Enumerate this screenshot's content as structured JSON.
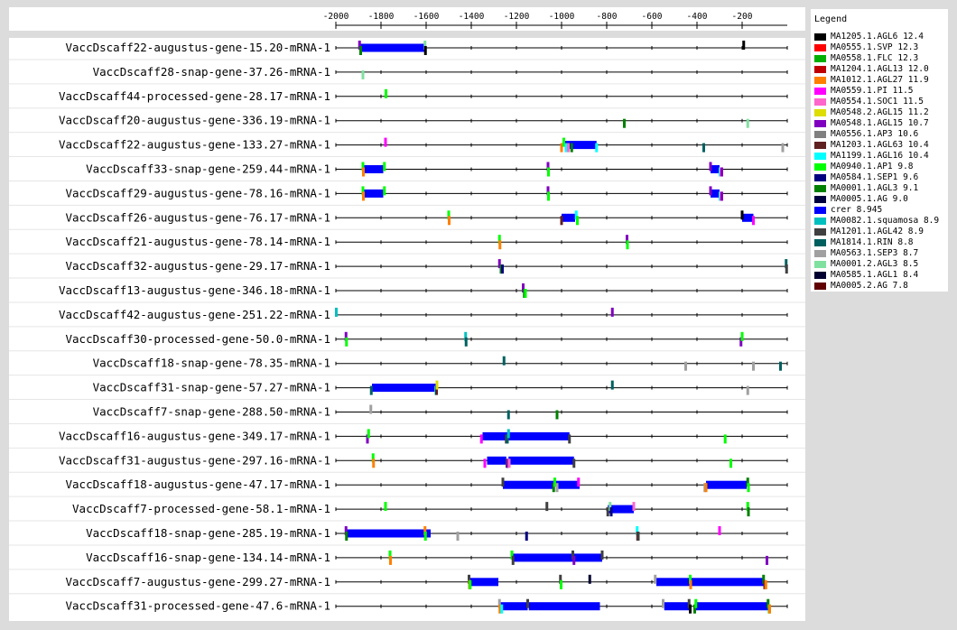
{
  "legend": {
    "title": "Legend",
    "items": [
      {
        "label": "MA1205.1.AGL6 12.4",
        "color": "#000000"
      },
      {
        "label": "MA0555.1.SVP 12.3",
        "color": "#ff0000"
      },
      {
        "label": "MA0558.1.FLC 12.3",
        "color": "#00b000"
      },
      {
        "label": "MA1204.1.AGL13 12.0",
        "color": "#c00000"
      },
      {
        "label": "MA1012.1.AGL27 11.9",
        "color": "#ff7f00"
      },
      {
        "label": "MA0559.1.PI 11.5",
        "color": "#ff00ff"
      },
      {
        "label": "MA0554.1.SOC1 11.5",
        "color": "#ff66cc"
      },
      {
        "label": "MA0548.2.AGL15 11.2",
        "color": "#dddd00"
      },
      {
        "label": "MA0548.1.AGL15 10.7",
        "color": "#8000c0"
      },
      {
        "label": "MA0556.1.AP3 10.6",
        "color": "#808080"
      },
      {
        "label": "MA1203.1.AGL63 10.4",
        "color": "#602020"
      },
      {
        "label": "MA1199.1.AGL16 10.4",
        "color": "#00ffff"
      },
      {
        "label": "MA0940.1.AP1 9.8",
        "color": "#00ff00"
      },
      {
        "label": "MA0584.1.SEP1 9.6",
        "color": "#000080"
      },
      {
        "label": "MA0001.1.AGL3 9.1",
        "color": "#008000"
      },
      {
        "label": "MA0005.1.AG 9.0",
        "color": "#000040"
      },
      {
        "label": "crer 8.945",
        "color": "#0000ff"
      },
      {
        "label": "MA0082.1.squamosa 8.9",
        "color": "#00c0c0"
      },
      {
        "label": "MA1201.1.AGL42 8.9",
        "color": "#404040"
      },
      {
        "label": "MA1814.1.RIN 8.8",
        "color": "#006060"
      },
      {
        "label": "MA0563.1.SEP3 8.7",
        "color": "#a0a0a0"
      },
      {
        "label": "MA0001.2.AGL3 8.5",
        "color": "#80e0a0"
      },
      {
        "label": "MA0585.1.AGL1 8.4",
        "color": "#000030"
      },
      {
        "label": "MA0005.2.AG 7.8",
        "color": "#600000"
      }
    ]
  },
  "chart_data": {
    "type": "track",
    "xlim": [
      -2000,
      0
    ],
    "x_ticks": [
      -2000,
      -1800,
      -1600,
      -1400,
      -1200,
      -1000,
      -800,
      -600,
      -400,
      -200
    ],
    "colors": {
      "AGL6": "#000000",
      "SVP": "#ff0000",
      "FLC": "#00b000",
      "AGL13": "#c00000",
      "AGL27": "#ff7f00",
      "PI": "#ff00ff",
      "SOC1": "#ff66cc",
      "AGL15b": "#dddd00",
      "AGL15": "#8000c0",
      "AP3": "#808080",
      "AGL63": "#602020",
      "AGL16": "#00ffff",
      "AP1": "#00ff00",
      "SEP1": "#000080",
      "AGL3": "#008000",
      "AG": "#000040",
      "crer": "#0000ff",
      "squamosa": "#00c0c0",
      "AGL42": "#404040",
      "RIN": "#006060",
      "SEP3": "#a0a0a0",
      "AGL3b": "#80e0a0",
      "AGL1": "#000030",
      "AG2": "#600000"
    },
    "rows": [
      {
        "label": "VaccDscaff22-augustus-gene-15.20-mRNA-1",
        "crer": [
          [
            -1890,
            -1605
          ]
        ],
        "marks": [
          [
            -1895,
            "AGL15",
            -1
          ],
          [
            -1890,
            "AGL3",
            1
          ],
          [
            -1605,
            "AGL3b",
            -1
          ],
          [
            -1603,
            "AGL6",
            1
          ],
          [
            -193,
            "AGL6",
            -1
          ]
        ]
      },
      {
        "label": "VaccDscaff28-snap-gene-37.26-mRNA-1",
        "crer": [],
        "marks": [
          [
            -1880,
            "AGL3b",
            1
          ]
        ]
      },
      {
        "label": "VaccDscaff44-processed-gene-28.17-mRNA-1",
        "crer": [],
        "marks": [
          [
            -1778,
            "AP1",
            -1
          ]
        ]
      },
      {
        "label": "VaccDscaff20-augustus-gene-336.19-mRNA-1",
        "crer": [],
        "marks": [
          [
            -722,
            "AGL3",
            1
          ],
          [
            -175,
            "AGL3b",
            1
          ]
        ]
      },
      {
        "label": "VaccDscaff22-augustus-gene-133.27-mRNA-1",
        "crer": [
          [
            -985,
            -845
          ]
        ],
        "marks": [
          [
            -1780,
            "PI",
            -1
          ],
          [
            -1000,
            "AGL27",
            1
          ],
          [
            -990,
            "AP1",
            -1
          ],
          [
            -980,
            "AGL16",
            1
          ],
          [
            -970,
            "SOC1",
            1
          ],
          [
            -955,
            "AGL3",
            1
          ],
          [
            -845,
            "AGL16",
            1
          ],
          [
            -370,
            "RIN",
            1
          ],
          [
            -20,
            "SEP3",
            1
          ]
        ]
      },
      {
        "label": "VaccDscaff33-snap-gene-259.44-mRNA-1",
        "crer": [
          [
            -1875,
            -1790
          ],
          [
            -340,
            -300
          ]
        ],
        "marks": [
          [
            -1880,
            "AP1",
            -1
          ],
          [
            -1878,
            "AGL27",
            1
          ],
          [
            -1785,
            "AP1",
            -1
          ],
          [
            -1060,
            "AGL15",
            -1
          ],
          [
            -1058,
            "AP1",
            1
          ],
          [
            -340,
            "AGL15",
            -1
          ],
          [
            -298,
            "AGL16",
            1
          ],
          [
            -294,
            "SOC1",
            1
          ],
          [
            -290,
            "AGL15",
            1
          ]
        ]
      },
      {
        "label": "VaccDscaff29-augustus-gene-78.16-mRNA-1",
        "crer": [
          [
            -1875,
            -1790
          ],
          [
            -340,
            -300
          ]
        ],
        "marks": [
          [
            -1880,
            "AP1",
            -1
          ],
          [
            -1878,
            "AGL27",
            1
          ],
          [
            -1785,
            "AP1",
            -1
          ],
          [
            -1060,
            "AGL15",
            -1
          ],
          [
            -1058,
            "AP1",
            1
          ],
          [
            -340,
            "AGL15",
            -1
          ],
          [
            -298,
            "AGL16",
            1
          ],
          [
            -294,
            "SOC1",
            1
          ],
          [
            -290,
            "AGL15",
            1
          ]
        ]
      },
      {
        "label": "VaccDscaff26-augustus-gene-76.17-mRNA-1",
        "crer": [
          [
            -1000,
            -940
          ],
          [
            -200,
            -150
          ]
        ],
        "marks": [
          [
            -1500,
            "AP1",
            -1
          ],
          [
            -1498,
            "AGL27",
            1
          ],
          [
            -1000,
            "AGL63",
            1
          ],
          [
            -935,
            "AGL16",
            -1
          ],
          [
            -930,
            "AP1",
            1
          ],
          [
            -200,
            "AGL6",
            -1
          ],
          [
            -150,
            "PI",
            1
          ]
        ]
      },
      {
        "label": "VaccDscaff21-augustus-gene-78.14-mRNA-1",
        "crer": [],
        "marks": [
          [
            -1275,
            "AP1",
            -1
          ],
          [
            -1273,
            "AGL27",
            1
          ],
          [
            -710,
            "AGL15",
            -1
          ],
          [
            -708,
            "AP1",
            1
          ]
        ]
      },
      {
        "label": "VaccDscaff32-augustus-gene-29.17-mRNA-1",
        "crer": [],
        "marks": [
          [
            -1275,
            "AGL15",
            -1
          ],
          [
            -1268,
            "AGL3",
            1
          ],
          [
            -1262,
            "SEP1",
            1
          ],
          [
            -5,
            "RIN",
            -1
          ],
          [
            -3,
            "AGL42",
            1
          ]
        ]
      },
      {
        "label": "VaccDscaff13-augustus-gene-346.18-mRNA-1",
        "crer": [],
        "marks": [
          [
            -1170,
            "AGL15",
            -1
          ],
          [
            -1165,
            "AGL3",
            1
          ],
          [
            -1160,
            "AP1",
            1
          ]
        ]
      },
      {
        "label": "VaccDscaff42-augustus-gene-251.22-mRNA-1",
        "crer": [],
        "marks": [
          [
            -1998,
            "squamosa",
            -1
          ],
          [
            -775,
            "AGL15",
            -1
          ]
        ]
      },
      {
        "label": "VaccDscaff30-processed-gene-50.0-mRNA-1",
        "crer": [],
        "marks": [
          [
            -1955,
            "AGL15",
            -1
          ],
          [
            -1953,
            "AP1",
            1
          ],
          [
            -1425,
            "squamosa",
            -1
          ],
          [
            -1423,
            "RIN",
            1
          ],
          [
            -205,
            "AGL15",
            1
          ],
          [
            -200,
            "AP1",
            -1
          ]
        ]
      },
      {
        "label": "VaccDscaff18-snap-gene-78.35-mRNA-1",
        "crer": [],
        "marks": [
          [
            -1255,
            "RIN",
            -1
          ],
          [
            -450,
            "SEP3",
            1
          ],
          [
            -150,
            "SEP3",
            1
          ],
          [
            -30,
            "RIN",
            1
          ]
        ]
      },
      {
        "label": "VaccDscaff31-snap-gene-57.27-mRNA-1",
        "crer": [
          [
            -1840,
            -1555
          ]
        ],
        "marks": [
          [
            -1843,
            "RIN",
            1
          ],
          [
            -1557,
            "AGL16",
            1
          ],
          [
            -1554,
            "AGL63",
            1
          ],
          [
            -1552,
            "AGL15b",
            -1
          ],
          [
            -775,
            "RIN",
            -1
          ],
          [
            -175,
            "SEP3",
            1
          ]
        ]
      },
      {
        "label": "VaccDscaff7-snap-gene-288.50-mRNA-1",
        "crer": [],
        "marks": [
          [
            -1845,
            "SEP3",
            -1
          ],
          [
            -1235,
            "RIN",
            1
          ],
          [
            -1020,
            "AGL3",
            1
          ]
        ]
      },
      {
        "label": "VaccDscaff16-augustus-gene-349.17-mRNA-1",
        "crer": [
          [
            -1350,
            -1240
          ],
          [
            -1235,
            -965
          ]
        ],
        "marks": [
          [
            -1860,
            "AGL15",
            1
          ],
          [
            -1855,
            "AP1",
            -1
          ],
          [
            -1355,
            "PI",
            1
          ],
          [
            -1245,
            "AGL42",
            1
          ],
          [
            -1240,
            "RIN",
            1
          ],
          [
            -1235,
            "squamosa",
            -1
          ],
          [
            -965,
            "AGL42",
            1
          ],
          [
            -275,
            "AP1",
            1
          ]
        ]
      },
      {
        "label": "VaccDscaff31-augustus-gene-297.16-mRNA-1",
        "crer": [
          [
            -1330,
            -1245
          ],
          [
            -1235,
            -945
          ]
        ],
        "marks": [
          [
            -1835,
            "AP1",
            -1
          ],
          [
            -1833,
            "AGL27",
            1
          ],
          [
            -1340,
            "PI",
            1
          ],
          [
            -1242,
            "AGL42",
            1
          ],
          [
            -1238,
            "AGL15",
            1
          ],
          [
            -1232,
            "SOC1",
            1
          ],
          [
            -945,
            "AGL42",
            1
          ],
          [
            -250,
            "AP1",
            1
          ]
        ]
      },
      {
        "label": "VaccDscaff18-augustus-gene-47.17-mRNA-1",
        "crer": [
          [
            -1260,
            -1030
          ],
          [
            -1025,
            -920
          ],
          [
            -360,
            -180
          ]
        ],
        "marks": [
          [
            -1260,
            "AGL42",
            -1
          ],
          [
            -1035,
            "AGL3",
            1
          ],
          [
            -1030,
            "AP1",
            -1
          ],
          [
            -1020,
            "SEP3",
            1
          ],
          [
            -925,
            "PI",
            -1
          ],
          [
            -365,
            "SEP3",
            1
          ],
          [
            -360,
            "AGL27",
            1
          ],
          [
            -175,
            "AGL3",
            -1
          ],
          [
            -172,
            "AP1",
            1
          ]
        ]
      },
      {
        "label": "VaccDscaff7-processed-gene-58.1-mRNA-1",
        "crer": [
          [
            -795,
            -680
          ]
        ],
        "marks": [
          [
            -1780,
            "AP1",
            -1
          ],
          [
            -1065,
            "AGL42",
            -1
          ],
          [
            -795,
            "AGL42",
            1
          ],
          [
            -785,
            "AGL3b",
            -1
          ],
          [
            -780,
            "SEP1",
            1
          ],
          [
            -680,
            "SOC1",
            -1
          ],
          [
            -175,
            "AP1",
            -1
          ],
          [
            -172,
            "AGL3",
            1
          ]
        ]
      },
      {
        "label": "VaccDscaff18-snap-gene-285.19-mRNA-1",
        "crer": [
          [
            -1950,
            -1580
          ]
        ],
        "marks": [
          [
            -1955,
            "AGL15",
            -1
          ],
          [
            -1953,
            "AGL3",
            1
          ],
          [
            -1605,
            "AGL27",
            -1
          ],
          [
            -1603,
            "AP1",
            1
          ],
          [
            -1155,
            "SEP1",
            1
          ],
          [
            -665,
            "AGL16",
            -1
          ],
          [
            -663,
            "AGL63",
            1
          ],
          [
            -660,
            "AGL42",
            1
          ],
          [
            -1460,
            "SEP3",
            1
          ],
          [
            -300,
            "PI",
            -1
          ]
        ]
      },
      {
        "label": "VaccDscaff16-snap-gene-134.14-mRNA-1",
        "crer": [
          [
            -1215,
            -820
          ]
        ],
        "marks": [
          [
            -1760,
            "AP1",
            -1
          ],
          [
            -1758,
            "AGL27",
            1
          ],
          [
            -1220,
            "AP1",
            -1
          ],
          [
            -1215,
            "AGL42",
            1
          ],
          [
            -950,
            "AGL42",
            -1
          ],
          [
            -945,
            "AGL15",
            1
          ],
          [
            -820,
            "AGL42",
            -1
          ],
          [
            -90,
            "AGL15",
            1
          ]
        ]
      },
      {
        "label": "VaccDscaff7-augustus-gene-299.27-mRNA-1",
        "crer": [
          [
            -1405,
            -1280
          ],
          [
            -580,
            -100
          ]
        ],
        "marks": [
          [
            -1410,
            "AGL42",
            -1
          ],
          [
            -1408,
            "AGL27",
            1
          ],
          [
            -1405,
            "AP1",
            1
          ],
          [
            -1005,
            "AGL42",
            -1
          ],
          [
            -1002,
            "AP1",
            1
          ],
          [
            -875,
            "AGL1",
            -1
          ],
          [
            -585,
            "SEP3",
            -1
          ],
          [
            -430,
            "AP1",
            -1
          ],
          [
            -428,
            "AGL27",
            1
          ],
          [
            -105,
            "AGL3",
            -1
          ],
          [
            -100,
            "AGL63",
            1
          ],
          [
            -95,
            "AGL27",
            1
          ]
        ]
      },
      {
        "label": "VaccDscaff31-processed-gene-47.6-mRNA-1",
        "crer": [
          [
            -1270,
            -1150
          ],
          [
            -1145,
            -830
          ],
          [
            -545,
            -430
          ],
          [
            -410,
            -80
          ]
        ],
        "marks": [
          [
            -1275,
            "SEP3",
            -1
          ],
          [
            -1273,
            "AGL27",
            1
          ],
          [
            -1265,
            "AGL16",
            1
          ],
          [
            -1150,
            "AGL42",
            -1
          ],
          [
            -550,
            "SEP3",
            -1
          ],
          [
            -435,
            "AGL42",
            -1
          ],
          [
            -430,
            "AGL6",
            1
          ],
          [
            -410,
            "AGL3",
            1
          ],
          [
            -405,
            "AP1",
            -1
          ],
          [
            -85,
            "AGL3",
            -1
          ],
          [
            -80,
            "AP1",
            1
          ],
          [
            -78,
            "AGL27",
            1
          ]
        ]
      }
    ]
  }
}
